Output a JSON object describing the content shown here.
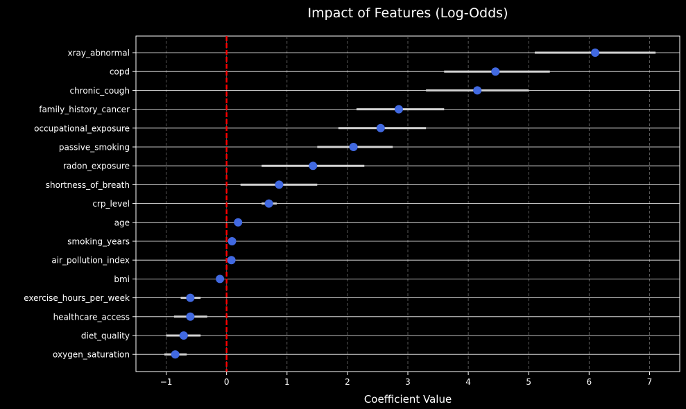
{
  "chart_data": {
    "type": "scatter",
    "title": "Impact of Features (Log-Odds)",
    "xlabel": "Coefficient Value",
    "ylabel": "",
    "xlim": [
      -1.5,
      7.5
    ],
    "x_ticks": [
      -1,
      0,
      1,
      2,
      3,
      4,
      5,
      6,
      7
    ],
    "x_tick_labels": [
      "−1",
      "0",
      "1",
      "2",
      "3",
      "4",
      "5",
      "6",
      "7"
    ],
    "reference_line": {
      "x": 0,
      "style": "dashed",
      "color": "#ff0000"
    },
    "grid": {
      "x": true,
      "y": true,
      "x_style": "dashed"
    },
    "colors": {
      "background": "#000000",
      "point": "#4169e1",
      "error_bar": "#d3d3d3",
      "text": "#ffffff",
      "frame": "#ffffff",
      "grid_x": "#6e6e6e",
      "grid_y": "#ffffff"
    },
    "features": [
      {
        "name": "xray_abnormal",
        "value": 6.1,
        "ci_low": 5.1,
        "ci_high": 7.1
      },
      {
        "name": "copd",
        "value": 4.45,
        "ci_low": 3.6,
        "ci_high": 5.35
      },
      {
        "name": "chronic_cough",
        "value": 4.15,
        "ci_low": 3.3,
        "ci_high": 5.0
      },
      {
        "name": "family_history_cancer",
        "value": 2.85,
        "ci_low": 2.15,
        "ci_high": 3.6
      },
      {
        "name": "occupational_exposure",
        "value": 2.55,
        "ci_low": 1.85,
        "ci_high": 3.3
      },
      {
        "name": "passive_smoking",
        "value": 2.1,
        "ci_low": 1.5,
        "ci_high": 2.75
      },
      {
        "name": "radon_exposure",
        "value": 1.43,
        "ci_low": 0.58,
        "ci_high": 2.28
      },
      {
        "name": "shortness_of_breath",
        "value": 0.87,
        "ci_low": 0.23,
        "ci_high": 1.5
      },
      {
        "name": "crp_level",
        "value": 0.7,
        "ci_low": 0.58,
        "ci_high": 0.83
      },
      {
        "name": "age",
        "value": 0.19,
        "ci_low": 0.17,
        "ci_high": 0.21
      },
      {
        "name": "smoking_years",
        "value": 0.09,
        "ci_low": 0.07,
        "ci_high": 0.11
      },
      {
        "name": "air_pollution_index",
        "value": 0.08,
        "ci_low": 0.06,
        "ci_high": 0.1
      },
      {
        "name": "bmi",
        "value": -0.11,
        "ci_low": -0.13,
        "ci_high": -0.09
      },
      {
        "name": "exercise_hours_per_week",
        "value": -0.6,
        "ci_low": -0.76,
        "ci_high": -0.43
      },
      {
        "name": "healthcare_access",
        "value": -0.6,
        "ci_low": -0.87,
        "ci_high": -0.32
      },
      {
        "name": "diet_quality",
        "value": -0.71,
        "ci_low": -1.0,
        "ci_high": -0.43
      },
      {
        "name": "oxygen_saturation",
        "value": -0.85,
        "ci_low": -1.03,
        "ci_high": -0.66
      }
    ]
  }
}
